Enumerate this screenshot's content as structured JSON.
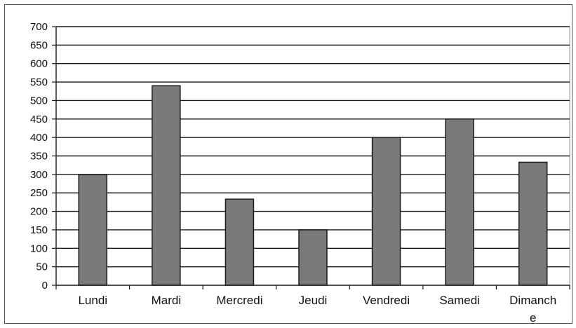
{
  "chart_data": {
    "type": "bar",
    "categories": [
      "Lundi",
      "Mardi",
      "Mercredi",
      "Jeudi",
      "Vendredi",
      "Samedi",
      "Dimanche"
    ],
    "category_display": [
      [
        "Lundi"
      ],
      [
        "Mardi"
      ],
      [
        "Mercredi"
      ],
      [
        "Jeudi"
      ],
      [
        "Vendredi"
      ],
      [
        "Samedi"
      ],
      [
        "Dimanch",
        "e"
      ]
    ],
    "values": [
      300,
      540,
      233,
      150,
      400,
      450,
      333
    ],
    "ylim": [
      0,
      700
    ],
    "yticks": [
      0,
      50,
      100,
      150,
      200,
      250,
      300,
      350,
      400,
      450,
      500,
      550,
      600,
      650,
      700
    ],
    "title": "",
    "xlabel": "",
    "ylabel": "",
    "grid": true,
    "legend": "none",
    "bar_color": "#7a7a7a",
    "bar_edge_color": "#1a1a1a",
    "grid_color": "#1a1a1a"
  }
}
